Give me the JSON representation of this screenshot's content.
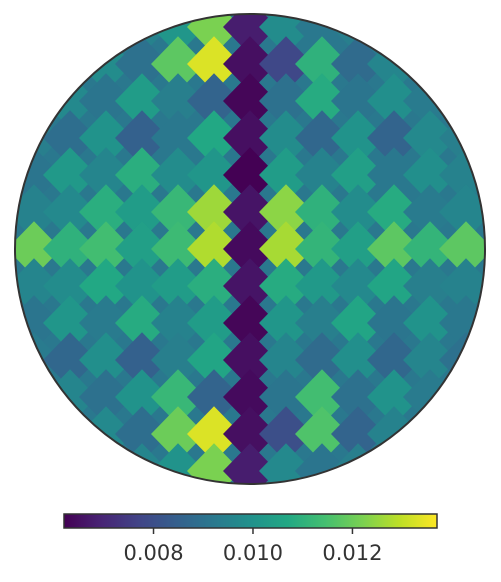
{
  "chart_data": {
    "type": "heatmap",
    "title": "",
    "projection": "orthographic",
    "colormap": "viridis",
    "colorbar": {
      "orientation": "horizontal",
      "location": "bottom",
      "range": [
        0.0062,
        0.0137
      ],
      "ticks": [
        {
          "value": 0.008,
          "label": "0.008"
        },
        {
          "value": 0.01,
          "label": "0.010"
        },
        {
          "value": 0.012,
          "label": "0.012"
        }
      ]
    },
    "grid": {
      "rows": 13,
      "columns": 13,
      "row_step": 37,
      "column_step": 36,
      "diamond_tiling": true
    },
    "values": [
      [
        0.009,
        0.0093,
        0.0087,
        0.0095,
        0.0101,
        0.0122,
        0.0068,
        0.0098,
        0.0092,
        0.0094,
        0.0088,
        0.0093,
        0.009
      ],
      [
        0.0092,
        0.0084,
        0.0098,
        0.009,
        0.0118,
        0.0133,
        0.0065,
        0.0078,
        0.011,
        0.0088,
        0.0096,
        0.0085,
        0.0092
      ],
      [
        0.0088,
        0.0097,
        0.0091,
        0.0103,
        0.0094,
        0.0086,
        0.0063,
        0.009,
        0.0108,
        0.0091,
        0.0099,
        0.0093,
        0.0089
      ],
      [
        0.0094,
        0.0089,
        0.01,
        0.0085,
        0.0092,
        0.0107,
        0.0065,
        0.0098,
        0.0087,
        0.01,
        0.0086,
        0.0097,
        0.0094
      ],
      [
        0.0091,
        0.0102,
        0.0096,
        0.0109,
        0.0098,
        0.0101,
        0.0062,
        0.0103,
        0.0095,
        0.0104,
        0.0092,
        0.0099,
        0.0095
      ],
      [
        0.0095,
        0.0097,
        0.0109,
        0.0103,
        0.0112,
        0.0126,
        0.0066,
        0.0124,
        0.011,
        0.0098,
        0.0108,
        0.0093,
        0.0096
      ],
      [
        0.012,
        0.011,
        0.0114,
        0.0104,
        0.0113,
        0.0128,
        0.0064,
        0.0127,
        0.0111,
        0.0104,
        0.0118,
        0.0111,
        0.0118
      ],
      [
        0.0096,
        0.0098,
        0.0107,
        0.01,
        0.0103,
        0.0109,
        0.0066,
        0.0108,
        0.0102,
        0.0097,
        0.0106,
        0.0094,
        0.0095
      ],
      [
        0.0091,
        0.0101,
        0.0093,
        0.0108,
        0.0095,
        0.0103,
        0.0063,
        0.0101,
        0.0094,
        0.0106,
        0.0091,
        0.01,
        0.0092
      ],
      [
        0.0093,
        0.0087,
        0.0099,
        0.0085,
        0.0094,
        0.0106,
        0.0065,
        0.0096,
        0.0088,
        0.0099,
        0.0087,
        0.0096,
        0.009
      ],
      [
        0.0089,
        0.0096,
        0.009,
        0.01,
        0.0112,
        0.0086,
        0.0064,
        0.0091,
        0.0114,
        0.009,
        0.01,
        0.0093,
        0.0088
      ],
      [
        0.0092,
        0.0085,
        0.0097,
        0.0089,
        0.012,
        0.0133,
        0.0065,
        0.008,
        0.0116,
        0.0086,
        0.0095,
        0.0084,
        0.0091
      ],
      [
        0.009,
        0.0094,
        0.0088,
        0.0096,
        0.01,
        0.0122,
        0.0068,
        0.0097,
        0.0091,
        0.0094,
        0.0089,
        0.0092,
        0.009
      ]
    ]
  }
}
